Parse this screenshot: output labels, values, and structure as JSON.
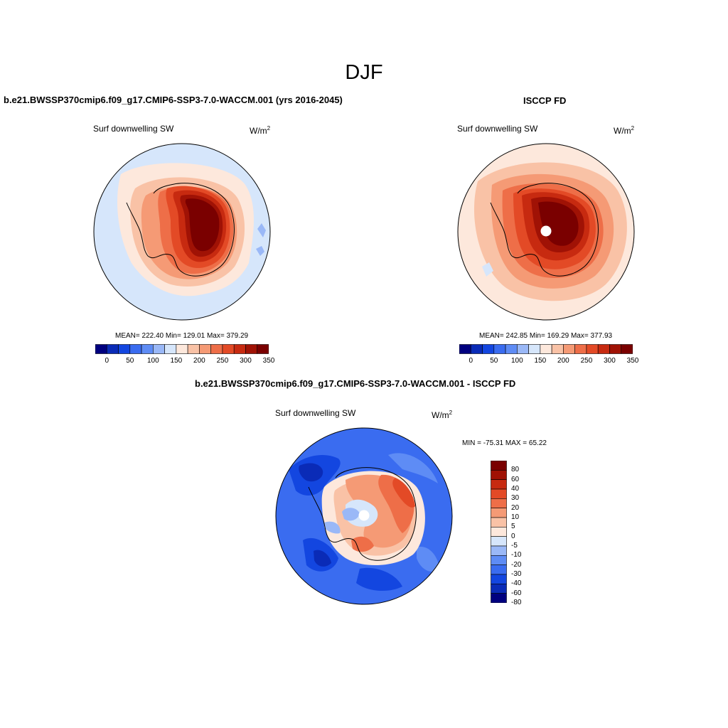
{
  "season": "DJF",
  "palette": [
    "#00007f",
    "#0a2bb7",
    "#1346e0",
    "#3a6cf0",
    "#5e8cf5",
    "#9ab8f7",
    "#d6e6fb",
    "#fde8dc",
    "#f9c2a6",
    "#f59a75",
    "#ee6e48",
    "#e34a26",
    "#c72a10",
    "#a01205",
    "#7a0000"
  ],
  "panel1": {
    "title": "b.e21.BWSSP370cmip6.f09_g17.CMIP6-SSP3-7.0-WACCM.001 (yrs 2016-2045)",
    "variable": "Surf downwelling SW",
    "units": "W/m",
    "units_exp": "2",
    "stats": "MEAN= 222.40  Min= 129.01  Max= 379.29"
  },
  "panel2": {
    "title": "ISCCP FD",
    "variable": "Surf downwelling SW",
    "units": "W/m",
    "units_exp": "2",
    "stats": "MEAN= 242.85  Min= 169.29  Max= 377.93"
  },
  "panel3": {
    "title": "b.e21.BWSSP370cmip6.f09_g17.CMIP6-SSP3-7.0-WACCM.001 - ISCCP FD",
    "variable": "Surf downwelling SW",
    "units": "W/m",
    "units_exp": "2",
    "stats": "MIN = -75.31 MAX =  65.22"
  },
  "colorbar_top": {
    "labels": [
      "0",
      "50",
      "100",
      "150",
      "200",
      "250",
      "300",
      "350"
    ]
  },
  "colorbar_diff": {
    "labels": [
      "80",
      "60",
      "40",
      "30",
      "20",
      "10",
      "5",
      "0",
      "-5",
      "-10",
      "-20",
      "-30",
      "-40",
      "-60",
      "-80"
    ]
  }
}
